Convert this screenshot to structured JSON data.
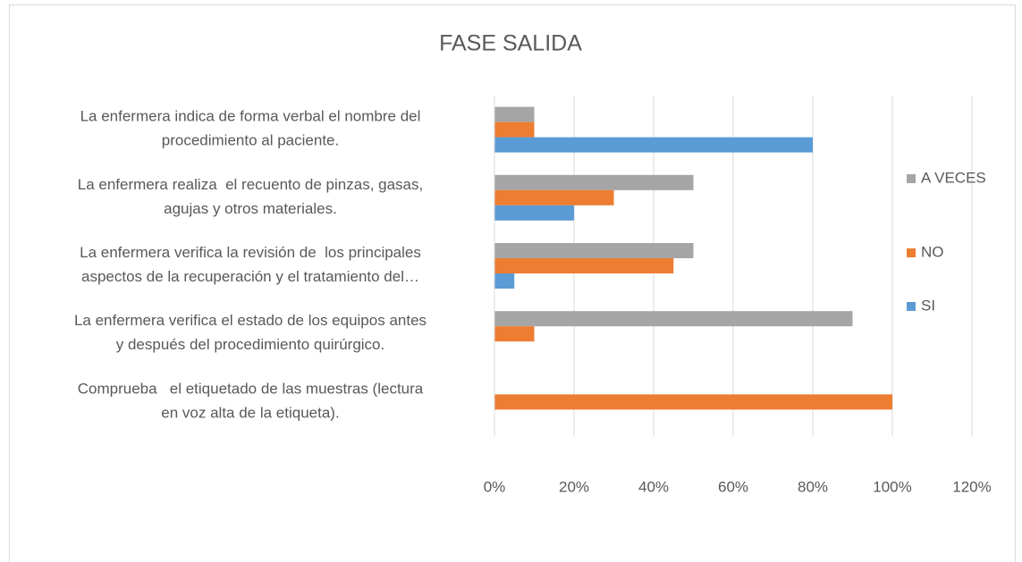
{
  "chart_data": {
    "type": "hbar",
    "title": "FASE SALIDA",
    "categories": [
      [
        "La enfermera indica de forma verbal el nombre del",
        "procedimiento al paciente."
      ],
      [
        "La enfermera realiza  el recuento de pinzas, gasas,",
        "agujas y otros materiales."
      ],
      [
        "La enfermera verifica la revisión de  los principales",
        "aspectos de la recuperación y el tratamiento del…"
      ],
      [
        "La enfermera verifica el estado de los equipos antes",
        "y después del procedimiento quirúrgico."
      ],
      [
        "Comprueba   el etiquetado de las muestras (lectura",
        "en voz alta de la etiqueta)."
      ]
    ],
    "series": [
      {
        "name": "A VECES",
        "color": "#a5a5a5",
        "values": [
          10,
          50,
          50,
          90,
          0
        ]
      },
      {
        "name": "NO",
        "color": "#ed7d31",
        "values": [
          10,
          30,
          45,
          10,
          100
        ]
      },
      {
        "name": "SI",
        "color": "#5b9bd5",
        "values": [
          80,
          20,
          5,
          0,
          0
        ]
      }
    ],
    "xlim": [
      0,
      120
    ],
    "xticks": [
      {
        "value": 0,
        "label": "0%"
      },
      {
        "value": 20,
        "label": "20%"
      },
      {
        "value": 40,
        "label": "40%"
      },
      {
        "value": 60,
        "label": "60%"
      },
      {
        "value": 80,
        "label": "80%"
      },
      {
        "value": 100,
        "label": "100%"
      },
      {
        "value": 120,
        "label": "120%"
      }
    ],
    "grid": true,
    "legend": "right"
  }
}
